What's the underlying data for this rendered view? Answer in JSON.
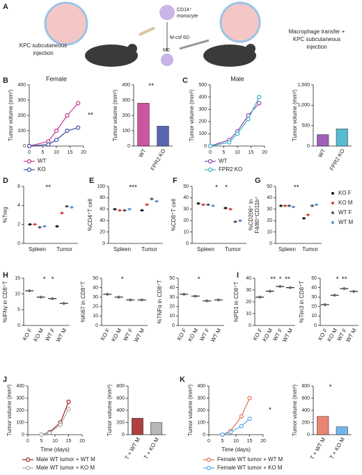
{
  "panel_labels": [
    "A",
    "B",
    "C",
    "D",
    "E",
    "F",
    "G",
    "H",
    "I",
    "J",
    "K"
  ],
  "schematic": {
    "left_caption": [
      "KPC subcutaneous",
      "injection"
    ],
    "monocyte": [
      "CD14⁺",
      "monocyte"
    ],
    "mcsf": "M-csf 6D",
    "m0": "M0",
    "right_caption": [
      "Macrophage transfer +",
      "KPC subcutaneous",
      "injection"
    ]
  },
  "chart_data": [
    {
      "type": "line",
      "title": "Female",
      "ylabel": "Tumor volume (mm³)",
      "x": [
        0,
        7,
        10,
        14,
        18
      ],
      "xlim": [
        0,
        20
      ],
      "xticks": [
        0,
        5,
        10,
        15,
        20
      ],
      "ylim": [
        0,
        400
      ],
      "yticks": [
        0,
        100,
        200,
        300,
        400
      ],
      "legend": "bottom",
      "annotations": [
        "**"
      ],
      "series": [
        {
          "name": "WT",
          "color": "#c2378f",
          "values": [
            0,
            30,
            100,
            200,
            280
          ]
        },
        {
          "name": "KO",
          "color": "#3b4ba0",
          "values": [
            0,
            10,
            40,
            100,
            120
          ]
        }
      ]
    },
    {
      "type": "bar",
      "ylabel": "Tumor volume (mm³)",
      "categories": [
        "WT",
        "FPR2 KO"
      ],
      "values": [
        280,
        130
      ],
      "colors": [
        "#c2378f",
        "#3b4ba0"
      ],
      "ylim": [
        0,
        400
      ],
      "yticks": [
        0,
        100,
        200,
        300,
        400
      ],
      "annotations": [
        "**"
      ]
    },
    {
      "type": "line",
      "title": "Male",
      "ylabel": "Tumor volume (mm³)",
      "x": [
        0,
        7,
        10,
        14,
        18
      ],
      "xlim": [
        0,
        20
      ],
      "xticks": [
        0,
        5,
        10,
        15,
        20
      ],
      "ylim": [
        0,
        500
      ],
      "yticks": [
        0,
        100,
        200,
        300,
        400,
        500
      ],
      "legend": "bottom",
      "series": [
        {
          "name": "WT",
          "color": "#8e44ad",
          "values": [
            0,
            50,
            120,
            250,
            350
          ]
        },
        {
          "name": "FPR2 KO",
          "color": "#3bb0c9",
          "values": [
            0,
            30,
            100,
            220,
            400
          ]
        }
      ]
    },
    {
      "type": "bar",
      "ylabel": "Tumor volume (mm³)",
      "categories": [
        "WT",
        "FPR2 KO"
      ],
      "values": [
        280,
        420
      ],
      "colors": [
        "#8e44ad",
        "#3bb0c9"
      ],
      "ylim": [
        0,
        1500
      ],
      "yticks": [
        0,
        {
          "value": 500,
          "label": "500"
        },
        {
          "value": 1000,
          "label": "1,000"
        },
        {
          "value": 1500,
          "label": "1,500"
        }
      ]
    },
    {
      "type": "groupdot",
      "ylabel": "%Treg",
      "categories": [
        "Spleen",
        "Tumor"
      ],
      "ylim": [
        0,
        6
      ],
      "yticks": [
        0,
        2,
        4,
        6
      ],
      "annotations": [
        "**"
      ],
      "series": [
        {
          "color": "#1a1a1a",
          "values": [
            2,
            1.8
          ]
        },
        {
          "color": "#d43f3f",
          "values": [
            2,
            3.2
          ]
        },
        {
          "color": "#555555",
          "values": [
            1.7,
            3.9
          ]
        },
        {
          "color": "#5b8fd6",
          "values": [
            1.8,
            3.8
          ]
        }
      ]
    },
    {
      "type": "groupdot",
      "ylabel": "%CD4⁺T cell",
      "categories": [
        "Spleen",
        "Tumor"
      ],
      "ylim": [
        0,
        100
      ],
      "yticks": [
        0,
        20,
        40,
        60,
        80,
        100
      ],
      "annotations": [
        "***"
      ],
      "series": [
        {
          "color": "#1a1a1a",
          "values": [
            60,
            58
          ]
        },
        {
          "color": "#d43f3f",
          "values": [
            58,
            68
          ]
        },
        {
          "color": "#555555",
          "values": [
            58,
            78
          ]
        },
        {
          "color": "#5b8fd6",
          "values": [
            60,
            74
          ]
        }
      ]
    },
    {
      "type": "groupdot",
      "ylabel": "%CD8⁺T cell",
      "categories": [
        "Spleen",
        "Tumor"
      ],
      "ylim": [
        0,
        50
      ],
      "yticks": [
        0,
        10,
        20,
        30,
        40,
        50
      ],
      "annotations": [
        "*",
        "*"
      ],
      "series": [
        {
          "color": "#1a1a1a",
          "values": [
            35,
            31
          ]
        },
        {
          "color": "#d43f3f",
          "values": [
            34,
            30
          ]
        },
        {
          "color": "#555555",
          "values": [
            34,
            19
          ]
        },
        {
          "color": "#5b8fd6",
          "values": [
            33,
            20
          ]
        }
      ]
    },
    {
      "type": "groupdot",
      "ylabel": [
        "%CD206⁺ in",
        "F4/80⁺CD11b⁺"
      ],
      "categories": [
        "Spleen",
        "Tumor"
      ],
      "ylim": [
        0,
        50
      ],
      "yticks": [
        0,
        10,
        20,
        30,
        40,
        50
      ],
      "annotations": [
        "**"
      ],
      "legend": "right",
      "series": [
        {
          "name": "KO F",
          "color": "#1a1a1a",
          "values": [
            33,
            22
          ]
        },
        {
          "name": "KO M",
          "color": "#d43f3f",
          "values": [
            33,
            25
          ]
        },
        {
          "name": "WT F",
          "color": "#555555",
          "values": [
            33,
            33
          ]
        },
        {
          "name": "WT M",
          "color": "#5b8fd6",
          "values": [
            32,
            34
          ]
        }
      ]
    },
    {
      "type": "dot",
      "ylabel": "%IFNγ in CD8⁺T",
      "categories": [
        "KO F",
        "KO M",
        "WT F",
        "WT M"
      ],
      "values": [
        11,
        9,
        8.5,
        7
      ],
      "ylim": [
        0,
        15
      ],
      "yticks": [
        0,
        5,
        10,
        15
      ],
      "annotations": [
        "*",
        "*"
      ]
    },
    {
      "type": "dot",
      "ylabel": "%Ki67 in CD8⁺T",
      "categories": [
        "KO F",
        "KO M",
        "WT F",
        "WT M"
      ],
      "values": [
        33,
        30,
        27,
        27
      ],
      "ylim": [
        0,
        50
      ],
      "yticks": [
        0,
        10,
        20,
        30,
        40,
        50
      ],
      "annotations": [
        "*"
      ]
    },
    {
      "type": "dot",
      "ylabel": "%TNFα in CD8⁺T",
      "categories": [
        "KO F",
        "KO M",
        "WT F",
        "WT M"
      ],
      "values": [
        33,
        31,
        26,
        27
      ],
      "ylim": [
        0,
        50
      ],
      "yticks": [
        0,
        10,
        20,
        30,
        40,
        50
      ],
      "annotations": [
        "*"
      ]
    },
    {
      "type": "dot",
      "ylabel": "%PD1 in CD8⁺T",
      "categories": [
        "KO F",
        "KO M",
        "WT F",
        "WT M"
      ],
      "values": [
        24,
        29,
        33,
        32
      ],
      "ylim": [
        0,
        40
      ],
      "yticks": [
        0,
        10,
        20,
        30,
        40
      ],
      "annotations": [
        "**",
        "*",
        "**"
      ]
    },
    {
      "type": "dot",
      "ylabel": "%Tim3 in CD8⁺T",
      "categories": [
        "KO F",
        "KO M",
        "WT F",
        "WT M"
      ],
      "values": [
        22,
        32,
        39,
        36
      ],
      "ylim": [
        0,
        50
      ],
      "yticks": [
        0,
        10,
        20,
        30,
        40,
        50
      ],
      "annotations": [
        "*",
        "**"
      ]
    },
    {
      "type": "line",
      "ylabel": "Tumor volume (mm³)",
      "xlabel": "Time (days)",
      "x": [
        5,
        8,
        12,
        15
      ],
      "xlim": [
        0,
        20
      ],
      "xticks": [
        0,
        5,
        10,
        15,
        20
      ],
      "ylim": [
        0,
        400
      ],
      "yticks": [
        0,
        100,
        200,
        300,
        400
      ],
      "legend": "bottom",
      "series": [
        {
          "name": "Male WT tumor + WT M",
          "color": "#a01f1f",
          "values": [
            0,
            20,
            100,
            270
          ]
        },
        {
          "name": "Male WT tumor + KO M",
          "color": "#aaaaaa",
          "values": [
            0,
            15,
            80,
            210
          ]
        }
      ]
    },
    {
      "type": "bar",
      "ylabel": "Tumor volume (mm³)",
      "categories": [
        "T + WT M",
        "T + KO M"
      ],
      "values": [
        270,
        200
      ],
      "colors": [
        "#a01f1f",
        "#aaaaaa"
      ],
      "ylim": [
        0,
        800
      ],
      "yticks": [
        0,
        200,
        400,
        600,
        800
      ]
    },
    {
      "type": "line",
      "ylabel": "Tumor volume (mm³)",
      "xlabel": "Time (days)",
      "x": [
        5,
        8,
        12,
        15
      ],
      "xlim": [
        0,
        20
      ],
      "xticks": [
        0,
        5,
        10,
        15,
        20
      ],
      "ylim": [
        0,
        400
      ],
      "yticks": [
        0,
        100,
        200,
        300,
        400
      ],
      "legend": "bottom",
      "annotations": [
        "*"
      ],
      "series": [
        {
          "name": "Female WT tumor + WT M",
          "color": "#e8705a",
          "values": [
            0,
            30,
            150,
            300
          ]
        },
        {
          "name": "Female WT tumor + KO M",
          "color": "#5aa9e6",
          "values": [
            0,
            20,
            70,
            130
          ]
        }
      ]
    },
    {
      "type": "bar",
      "ylabel": "Tumor volume (mm³)",
      "categories": [
        "T + WT M",
        "T + KO M"
      ],
      "values": [
        300,
        130
      ],
      "colors": [
        "#e8705a",
        "#5aa9e6"
      ],
      "ylim": [
        0,
        800
      ],
      "yticks": [
        0,
        200,
        400,
        600,
        800
      ],
      "annotations": [
        "*"
      ]
    }
  ]
}
